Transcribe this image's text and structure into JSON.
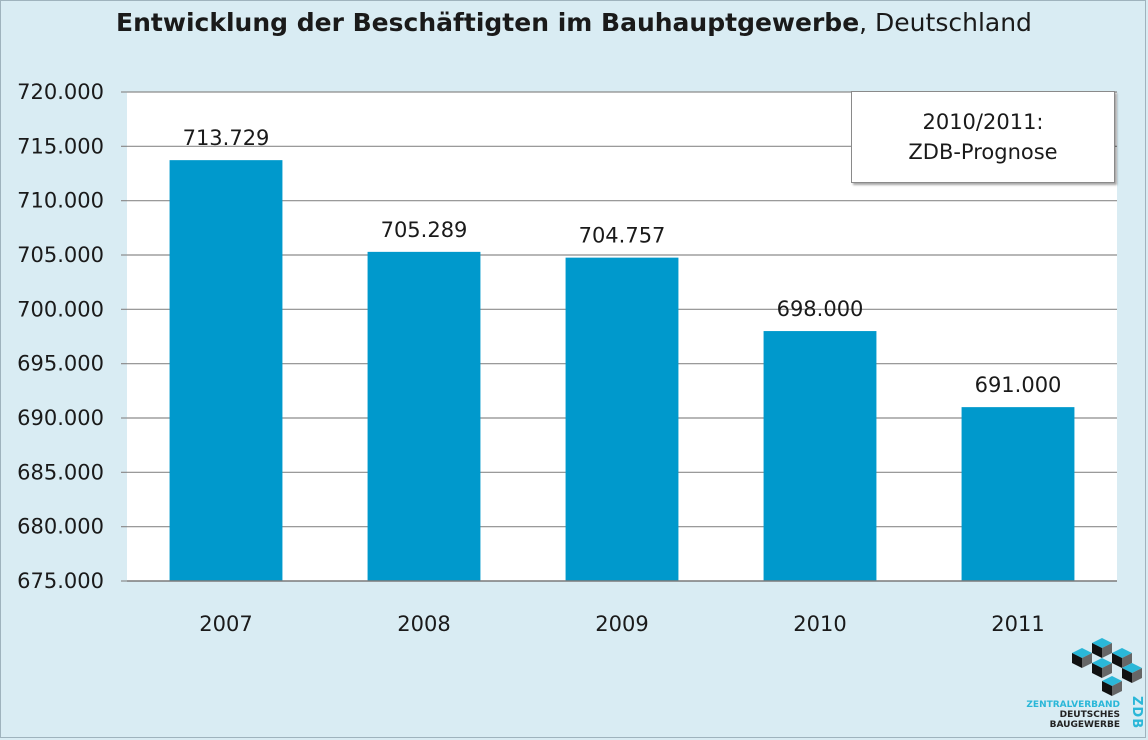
{
  "title": {
    "bold_part": "Entwicklung der Beschäftigten im Bauhauptgewerbe",
    "rest": ", Deutschland"
  },
  "note": {
    "line1": "2010/2011:",
    "line2": "ZDB-Prognose"
  },
  "logo": {
    "line1": "ZENTRALVERBAND",
    "line2": "DEUTSCHES",
    "line3": "BAUGEWERBE",
    "abbr": "ZDB"
  },
  "chart_data": {
    "type": "bar",
    "title": "Entwicklung der Beschäftigten im Bauhauptgewerbe, Deutschland",
    "xlabel": "",
    "ylabel": "",
    "categories": [
      "2007",
      "2008",
      "2009",
      "2010",
      "2011"
    ],
    "values": [
      713729,
      705289,
      704757,
      698000,
      691000
    ],
    "data_labels": [
      "713.729",
      "705.289",
      "704.757",
      "698.000",
      "691.000"
    ],
    "ylim": [
      675000,
      720000
    ],
    "yticks": [
      675000,
      680000,
      685000,
      690000,
      695000,
      700000,
      705000,
      710000,
      715000,
      720000
    ],
    "ytick_labels": [
      "675.000",
      "680.000",
      "685.000",
      "690.000",
      "695.000",
      "700.000",
      "705.000",
      "710.000",
      "715.000",
      "720.000"
    ],
    "grid": true,
    "bar_color": "#0099cc",
    "plot_background": "#ffffff"
  }
}
